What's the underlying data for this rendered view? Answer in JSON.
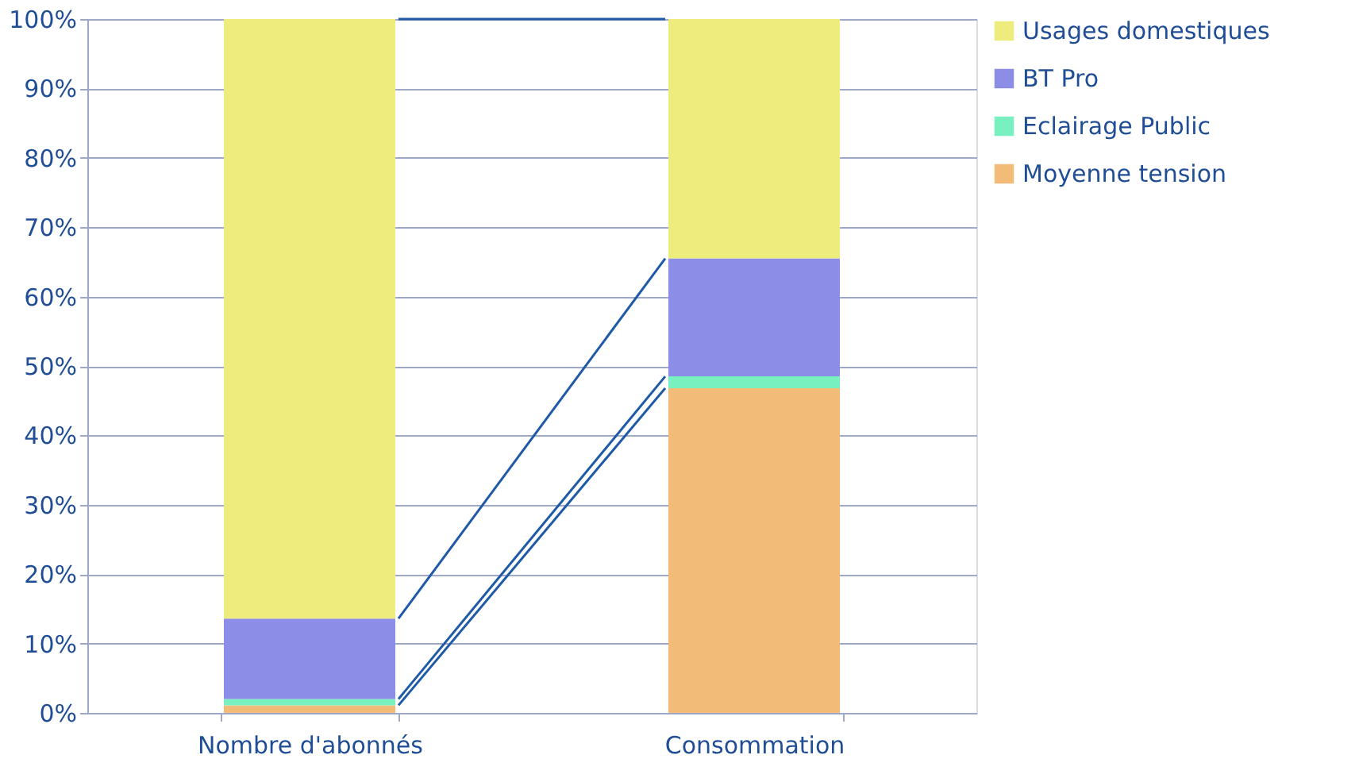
{
  "chart_data": {
    "type": "bar",
    "stacked": true,
    "categories": [
      "Nombre d'abonnés",
      "Consommation"
    ],
    "series": [
      {
        "name": "Moyenne tension",
        "color": "#f2bb78",
        "values": [
          1.1,
          46.8
        ]
      },
      {
        "name": "Eclairage Public",
        "color": "#78f0c0",
        "values": [
          0.9,
          1.7
        ]
      },
      {
        "name": "BT Pro",
        "color": "#8b8de6",
        "values": [
          11.6,
          17.0
        ]
      },
      {
        "name": "Usages domestiques",
        "color": "#eeec7c",
        "values": [
          86.4,
          34.5
        ]
      }
    ],
    "ylim": [
      0,
      100
    ],
    "yticks": [
      {
        "value": 0,
        "label": "0%"
      },
      {
        "value": 10,
        "label": "10%"
      },
      {
        "value": 20,
        "label": "20%"
      },
      {
        "value": 30,
        "label": "30%"
      },
      {
        "value": 40,
        "label": "40%"
      },
      {
        "value": 50,
        "label": "50%"
      },
      {
        "value": 60,
        "label": "60%"
      },
      {
        "value": 70,
        "label": "70%"
      },
      {
        "value": 80,
        "label": "80%"
      },
      {
        "value": 90,
        "label": "90%"
      },
      {
        "value": 100,
        "label": "100%"
      }
    ],
    "grid": "y",
    "legend": "right"
  }
}
